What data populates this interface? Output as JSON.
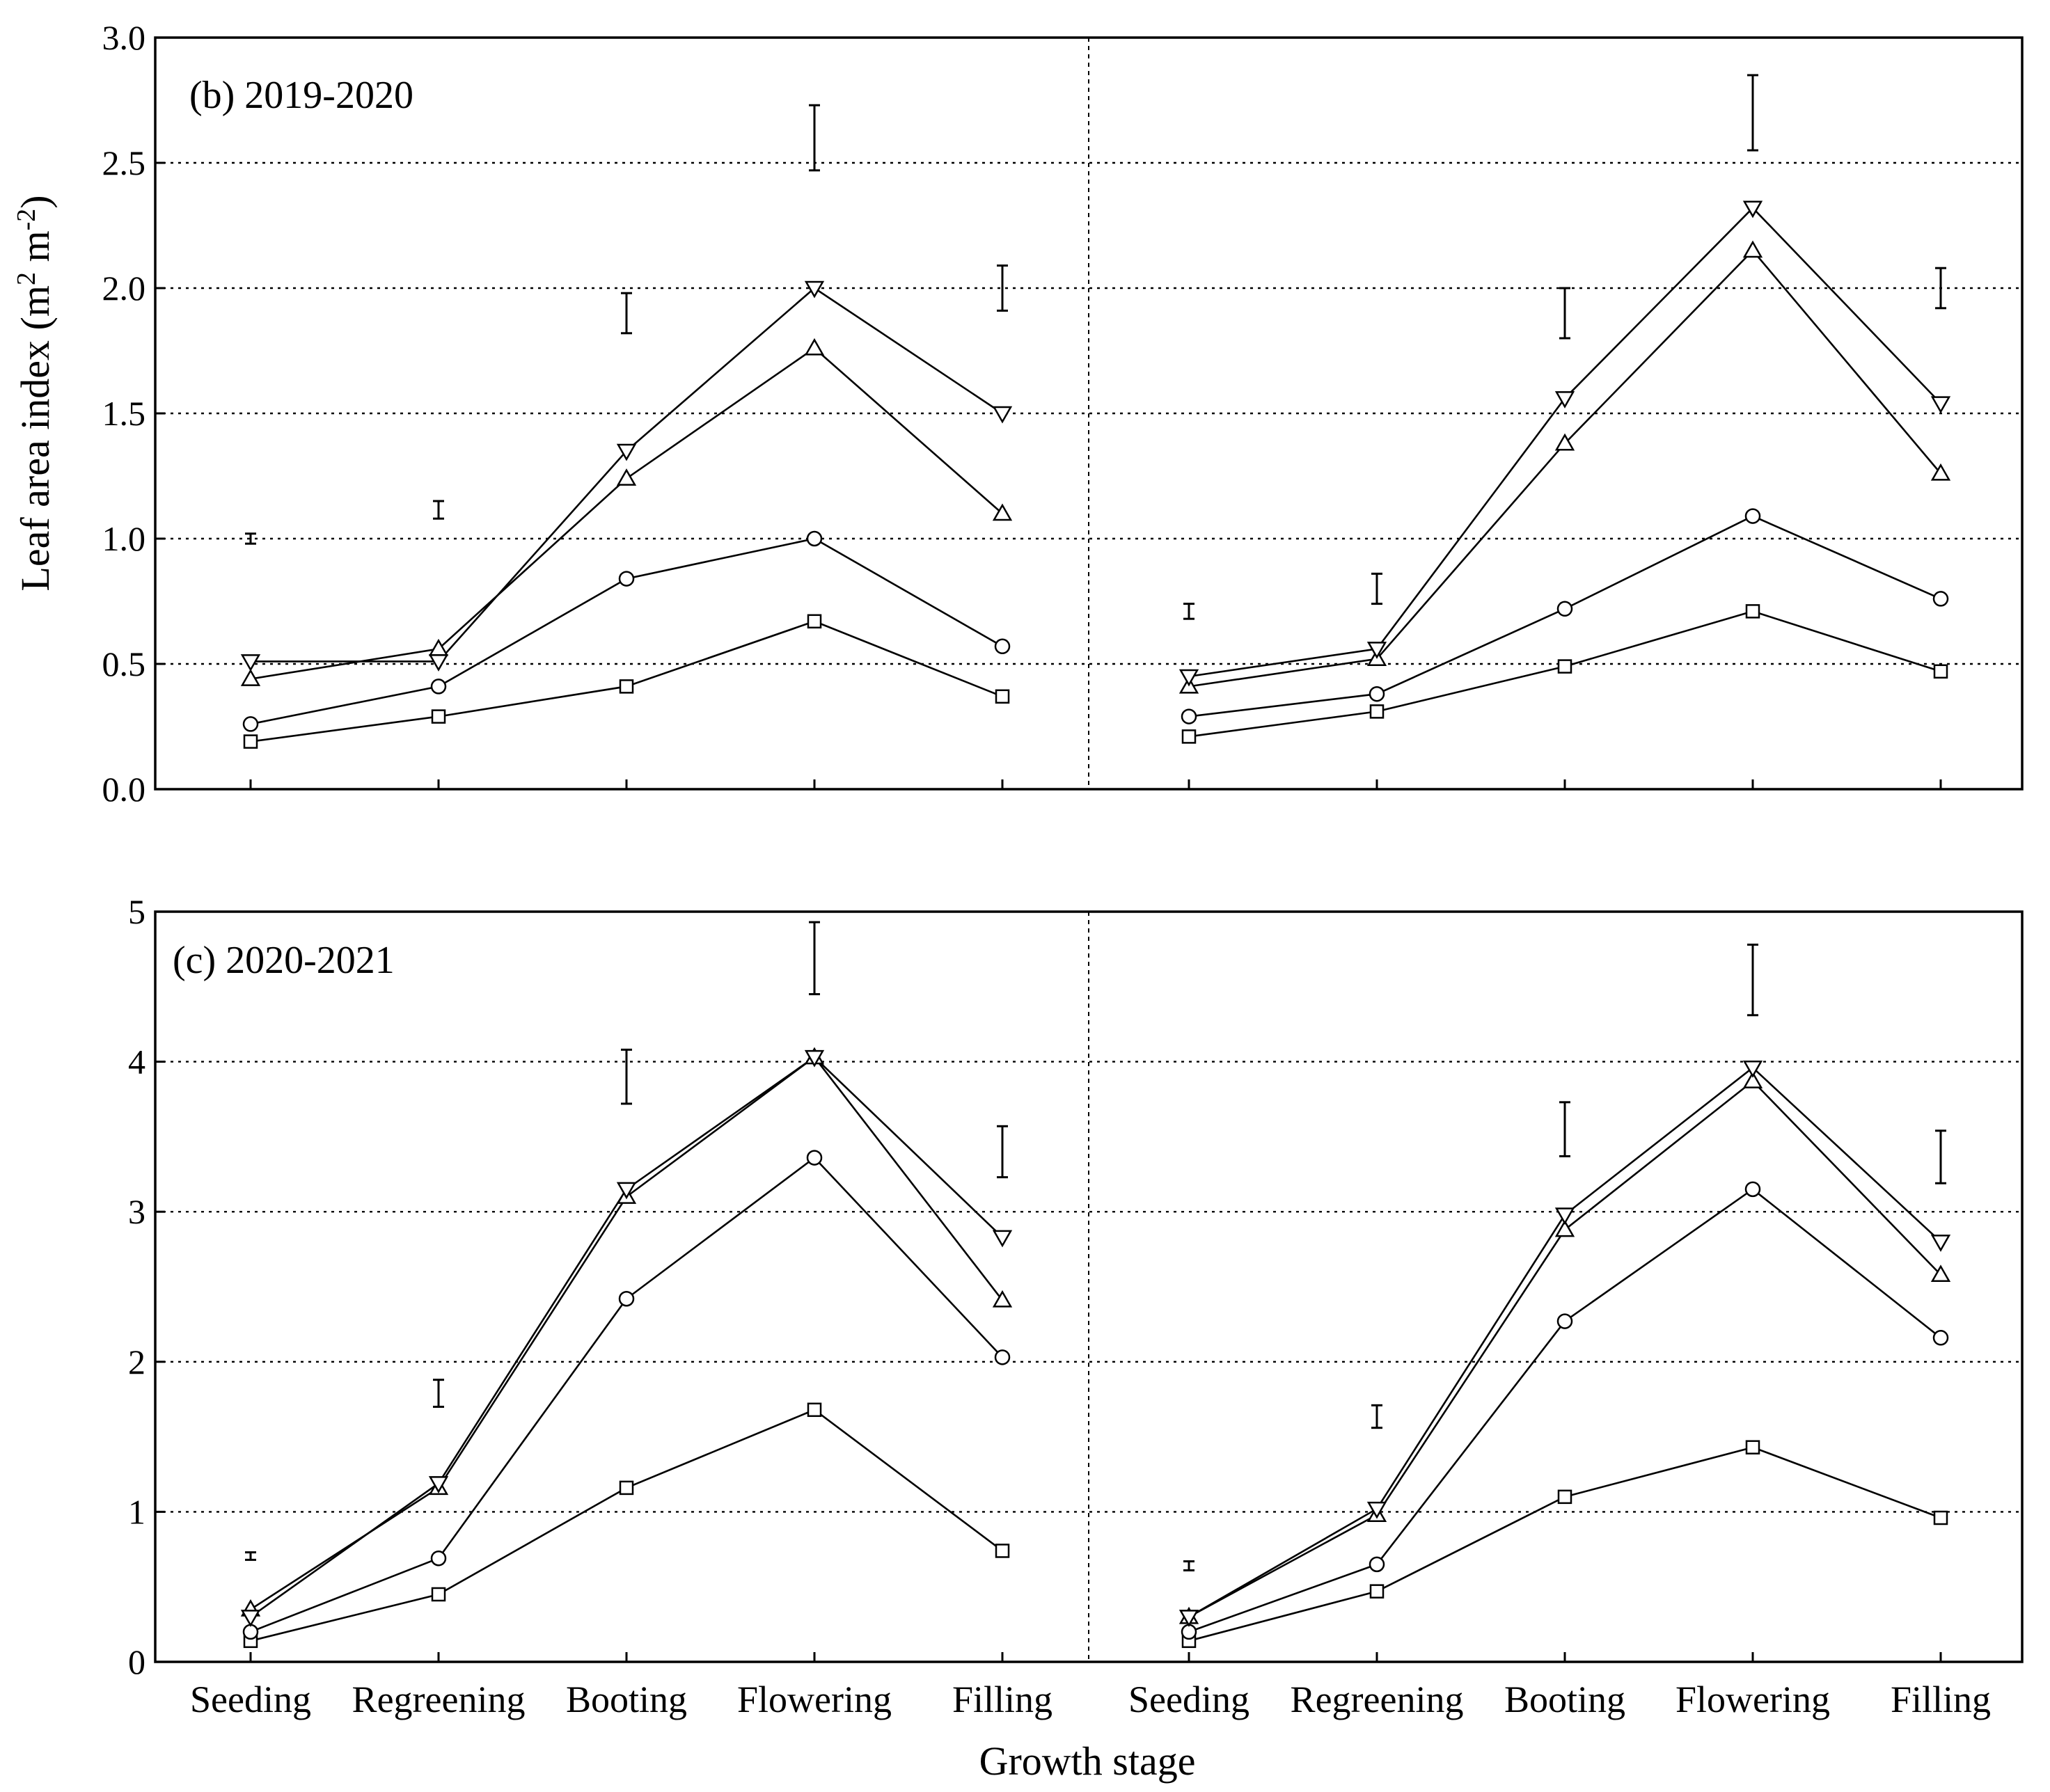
{
  "chart_data": [
    {
      "type": "line",
      "panel": "top",
      "title": "(b) 2019-2020",
      "xlabel": "",
      "ylabel": "Leaf area index (m2 m-2)",
      "ylim": [
        0,
        3.0
      ],
      "yticks": [
        "0.0",
        "0.5",
        "1.0",
        "1.5",
        "2.0",
        "2.5",
        "3.0"
      ],
      "grid_values": [
        0.5,
        1.0,
        1.5,
        2.0,
        2.5
      ],
      "categories": [
        "Seeding",
        "Regreening",
        "Booting",
        "Flowering",
        "Filling"
      ],
      "subplots": [
        {
          "series": [
            {
              "marker": "square",
              "values": [
                0.19,
                0.29,
                0.41,
                0.67,
                0.37
              ]
            },
            {
              "marker": "circle",
              "values": [
                0.26,
                0.41,
                0.84,
                1.0,
                0.57
              ]
            },
            {
              "marker": "triangle-up",
              "values": [
                0.44,
                0.56,
                1.24,
                1.76,
                1.1
              ]
            },
            {
              "marker": "triangle-down",
              "values": [
                0.51,
                0.51,
                1.35,
                2.0,
                1.5
              ]
            }
          ],
          "error_bars": [
            [
              0.98,
              1.02
            ],
            [
              1.08,
              1.15
            ],
            [
              1.82,
              1.98
            ],
            [
              2.47,
              2.73
            ],
            [
              1.91,
              2.09
            ]
          ]
        },
        {
          "series": [
            {
              "marker": "square",
              "values": [
                0.21,
                0.31,
                0.49,
                0.71,
                0.47
              ]
            },
            {
              "marker": "circle",
              "values": [
                0.29,
                0.38,
                0.72,
                1.09,
                0.76
              ]
            },
            {
              "marker": "triangle-up",
              "values": [
                0.41,
                0.52,
                1.38,
                2.15,
                1.26
              ]
            },
            {
              "marker": "triangle-down",
              "values": [
                0.45,
                0.56,
                1.56,
                2.32,
                1.54
              ]
            }
          ],
          "error_bars": [
            [
              0.68,
              0.74
            ],
            [
              0.74,
              0.86
            ],
            [
              1.8,
              2.0
            ],
            [
              2.55,
              2.85
            ],
            [
              1.92,
              2.08
            ]
          ]
        }
      ]
    },
    {
      "type": "line",
      "panel": "bottom",
      "title": "(c) 2020-2021",
      "xlabel": "Growth stage",
      "ylabel": "Leaf area index (m2 m-2)",
      "ylim": [
        0,
        5
      ],
      "yticks": [
        "0",
        "1",
        "2",
        "3",
        "4",
        "5"
      ],
      "grid_values": [
        1,
        2,
        3,
        4
      ],
      "categories": [
        "Seeding",
        "Regreening",
        "Booting",
        "Flowering",
        "Filling"
      ],
      "subplots": [
        {
          "series": [
            {
              "marker": "square",
              "values": [
                0.14,
                0.45,
                1.16,
                1.68,
                0.74
              ]
            },
            {
              "marker": "circle",
              "values": [
                0.2,
                0.69,
                2.42,
                3.36,
                2.03
              ]
            },
            {
              "marker": "triangle-up",
              "values": [
                0.35,
                1.16,
                3.1,
                4.03,
                2.41
              ]
            },
            {
              "marker": "triangle-down",
              "values": [
                0.3,
                1.19,
                3.15,
                4.03,
                2.83
              ]
            }
          ],
          "error_bars": [
            [
              0.68,
              0.73
            ],
            [
              1.7,
              1.88
            ],
            [
              3.72,
              4.08
            ],
            [
              4.45,
              4.93
            ],
            [
              3.23,
              3.57
            ]
          ]
        },
        {
          "series": [
            {
              "marker": "square",
              "values": [
                0.14,
                0.47,
                1.1,
                1.43,
                0.96
              ]
            },
            {
              "marker": "circle",
              "values": [
                0.2,
                0.65,
                2.27,
                3.15,
                2.16
              ]
            },
            {
              "marker": "triangle-up",
              "values": [
                0.3,
                0.98,
                2.88,
                3.87,
                2.58
              ]
            },
            {
              "marker": "triangle-down",
              "values": [
                0.3,
                1.02,
                2.98,
                3.96,
                2.8
              ]
            }
          ],
          "error_bars": [
            [
              0.61,
              0.67
            ],
            [
              1.56,
              1.71
            ],
            [
              3.37,
              3.73
            ],
            [
              4.31,
              4.78
            ],
            [
              3.19,
              3.54
            ]
          ]
        }
      ]
    }
  ],
  "labels": {
    "ylabel_main": "Leaf area index (m",
    "ylabel_sup1": "2",
    "ylabel_mid": " m",
    "ylabel_sup2": "-2",
    "ylabel_end": ")",
    "xlabel": "Growth stage"
  }
}
